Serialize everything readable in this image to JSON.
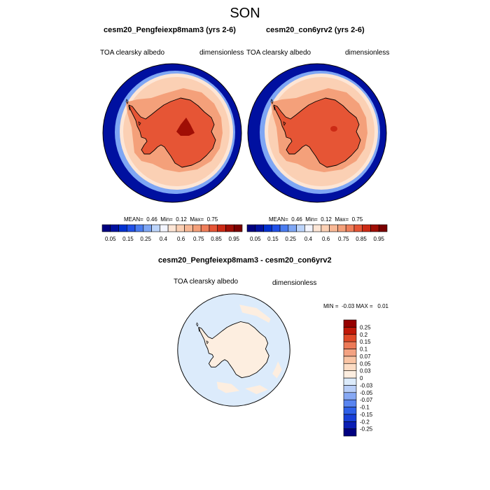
{
  "title": "SON",
  "colors": {
    "absolute_scale": [
      "#000080",
      "#0010a0",
      "#0030d0",
      "#2050e8",
      "#4a7cf0",
      "#7ea6f4",
      "#bcd4fa",
      "#f3f5ff",
      "#fde6d6",
      "#fbd0b4",
      "#f8b896",
      "#f4a07a",
      "#ef7e5a",
      "#e65535",
      "#cc2a15",
      "#a00e05",
      "#7a0000"
    ],
    "difference_scale": [
      "#000080",
      "#0a1eb4",
      "#1840d8",
      "#2e60e8",
      "#5884f0",
      "#86a8f4",
      "#b8cef8",
      "#dcebfb",
      "#fdeee0",
      "#fcdcc4",
      "#f9c4a4",
      "#f3a282",
      "#ec7a58",
      "#e04a28",
      "#c01808",
      "#960000"
    ]
  },
  "chart_data": [
    {
      "type": "heatmap",
      "title": "cesm20_Pengfeiexp8mam3 (yrs 2-6)",
      "variable_label": "TOA clearsky albedo",
      "units_label": "dimensionless",
      "projection": "south-polar stereographic",
      "stats": {
        "mean_label": "MEAN=",
        "mean": "0.46",
        "min_label": "Min=",
        "min": "0.12",
        "max_label": "Max=",
        "max": "0.75"
      },
      "colorbar": {
        "orientation": "horizontal",
        "tick_labels": [
          "0.05",
          "0.15",
          "0.25",
          "0.4",
          "0.6",
          "0.75",
          "0.85",
          "0.95"
        ]
      },
      "field_levels": [
        0.05,
        0.25,
        0.4,
        0.45,
        0.55,
        0.65
      ],
      "interior_max_level": 0.75
    },
    {
      "type": "heatmap",
      "title": "cesm20_con6yrv2 (yrs 2-6)",
      "variable_label": "TOA clearsky albedo",
      "units_label": "dimensionless",
      "projection": "south-polar stereographic",
      "stats": {
        "mean_label": "MEAN=",
        "mean": "0.46",
        "min_label": "Min=",
        "min": "0.12",
        "max_label": "Max=",
        "max": "0.75"
      },
      "colorbar": {
        "orientation": "horizontal",
        "tick_labels": [
          "0.05",
          "0.15",
          "0.25",
          "0.4",
          "0.6",
          "0.75",
          "0.85",
          "0.95"
        ]
      },
      "field_levels": [
        0.05,
        0.25,
        0.4,
        0.45,
        0.55,
        0.65
      ],
      "interior_max_level": 0.7
    },
    {
      "type": "heatmap",
      "title": "cesm20_Pengfeiexp8mam3 - cesm20_con6yrv2",
      "variable_label": "TOA clearsky albedo",
      "units_label": "dimensionless",
      "projection": "south-polar stereographic",
      "stats": {
        "min_label": "MIN =",
        "min": "-0.03",
        "max_label": "MAX =",
        "max": "0.01"
      },
      "colorbar": {
        "orientation": "vertical",
        "tick_labels": [
          "0.25",
          "0.2",
          "0.15",
          "0.1",
          "0.07",
          "0.05",
          "0.03",
          "0",
          "-0.03",
          "-0.05",
          "-0.07",
          "-0.1",
          "-0.15",
          "-0.2",
          "-0.25"
        ]
      },
      "ocean_level": -0.01,
      "land_level": 0.01
    }
  ]
}
